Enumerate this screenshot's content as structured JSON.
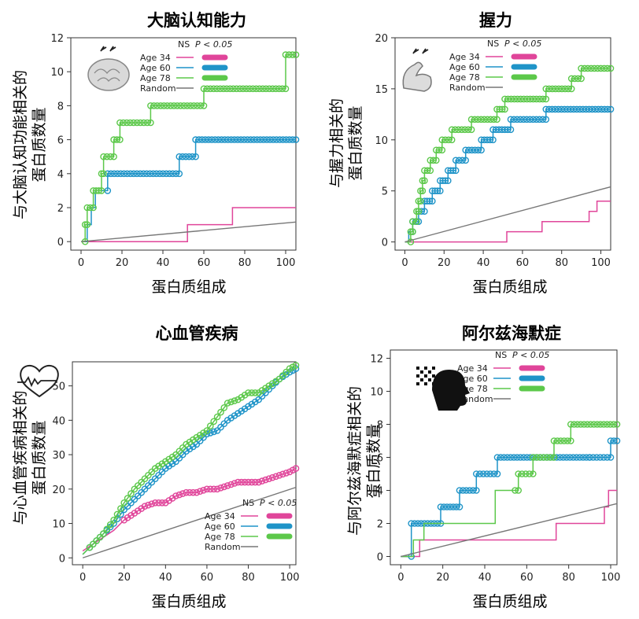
{
  "colors": {
    "age34": "#e0459a",
    "age60": "#1f94c8",
    "age78": "#5cc84a",
    "random": "#777777"
  },
  "chart_data": [
    {
      "type": "line",
      "title": "大脑认知能力",
      "xlabel": "蛋白质组成",
      "ylabel": [
        "与大脑认知功能相关的",
        "蛋白质数量"
      ],
      "xlim": [
        -5,
        105
      ],
      "ylim": [
        -0.5,
        12
      ],
      "xticks": [
        0,
        20,
        40,
        60,
        80,
        100
      ],
      "yticks": [
        0,
        2,
        4,
        6,
        8,
        10,
        12
      ],
      "legend": {
        "position": "top",
        "header_ns": "NS",
        "header_p": "P < 0.05",
        "icon": "brain-icon"
      },
      "series": [
        {
          "name": "Age 34",
          "color": "#e0459a",
          "steps": [
            [
              0,
              0
            ],
            [
              52,
              0
            ],
            [
              52,
              1
            ],
            [
              74,
              1
            ],
            [
              74,
              2
            ],
            [
              105,
              2
            ]
          ],
          "sig_from": 999
        },
        {
          "name": "Age 60",
          "color": "#1f94c8",
          "steps": [
            [
              0,
              0
            ],
            [
              3,
              0
            ],
            [
              3,
              1
            ],
            [
              5,
              1
            ],
            [
              5,
              2
            ],
            [
              7,
              2
            ],
            [
              7,
              3
            ],
            [
              13,
              3
            ],
            [
              13,
              4
            ],
            [
              48,
              4
            ],
            [
              48,
              5
            ],
            [
              56,
              5
            ],
            [
              56,
              6
            ],
            [
              105,
              6
            ]
          ],
          "sig_from": 12
        },
        {
          "name": "Age 78",
          "color": "#5cc84a",
          "steps": [
            [
              0,
              0
            ],
            [
              2,
              0
            ],
            [
              2,
              1
            ],
            [
              3,
              1
            ],
            [
              3,
              2
            ],
            [
              6,
              2
            ],
            [
              6,
              3
            ],
            [
              10,
              3
            ],
            [
              10,
              4
            ],
            [
              11,
              4
            ],
            [
              11,
              5
            ],
            [
              16,
              5
            ],
            [
              16,
              6
            ],
            [
              19,
              6
            ],
            [
              19,
              7
            ],
            [
              34,
              7
            ],
            [
              34,
              8
            ],
            [
              60,
              8
            ],
            [
              60,
              9
            ],
            [
              100,
              9
            ],
            [
              100,
              11
            ],
            [
              105,
              11
            ]
          ],
          "sig_from": 1
        },
        {
          "name": "Random",
          "color": "#777777",
          "line": [
            [
              0,
              0
            ],
            [
              105,
              1.15
            ]
          ]
        }
      ]
    },
    {
      "type": "line",
      "title": "握力",
      "xlabel": "蛋白质组成",
      "ylabel": [
        "与握力相关的",
        "蛋白质数量"
      ],
      "xlim": [
        -5,
        105
      ],
      "ylim": [
        -0.8,
        20
      ],
      "xticks": [
        0,
        20,
        40,
        60,
        80,
        100
      ],
      "yticks": [
        0,
        5,
        10,
        15,
        20
      ],
      "legend": {
        "position": "top",
        "header_ns": "NS",
        "header_p": "P < 0.05",
        "icon": "muscle-icon"
      },
      "series": [
        {
          "name": "Age 34",
          "color": "#e0459a",
          "steps": [
            [
              0,
              0
            ],
            [
              52,
              0
            ],
            [
              52,
              1
            ],
            [
              70,
              1
            ],
            [
              70,
              2
            ],
            [
              94,
              2
            ],
            [
              94,
              3
            ],
            [
              98,
              3
            ],
            [
              98,
              4
            ],
            [
              105,
              4
            ]
          ],
          "sig_from": 999
        },
        {
          "name": "Age 60",
          "color": "#1f94c8",
          "steps": [
            [
              0,
              0
            ],
            [
              2,
              0
            ],
            [
              2,
              1
            ],
            [
              4,
              1
            ],
            [
              4,
              2
            ],
            [
              7,
              2
            ],
            [
              7,
              3
            ],
            [
              10,
              3
            ],
            [
              10,
              4
            ],
            [
              14,
              4
            ],
            [
              14,
              5
            ],
            [
              18,
              5
            ],
            [
              18,
              6
            ],
            [
              22,
              6
            ],
            [
              22,
              7
            ],
            [
              26,
              7
            ],
            [
              26,
              8
            ],
            [
              31,
              8
            ],
            [
              31,
              9
            ],
            [
              39,
              9
            ],
            [
              39,
              10
            ],
            [
              45,
              10
            ],
            [
              45,
              11
            ],
            [
              54,
              11
            ],
            [
              54,
              12
            ],
            [
              72,
              12
            ],
            [
              72,
              13
            ],
            [
              105,
              13
            ]
          ],
          "sig_from": 4
        },
        {
          "name": "Age 78",
          "color": "#5cc84a",
          "steps": [
            [
              0,
              0
            ],
            [
              3,
              0
            ],
            [
              3,
              1
            ],
            [
              4,
              1
            ],
            [
              4,
              2
            ],
            [
              6,
              2
            ],
            [
              6,
              3
            ],
            [
              7,
              3
            ],
            [
              7,
              4
            ],
            [
              8,
              4
            ],
            [
              8,
              5
            ],
            [
              9,
              5
            ],
            [
              9,
              6
            ],
            [
              10,
              6
            ],
            [
              10,
              7
            ],
            [
              13,
              7
            ],
            [
              13,
              8
            ],
            [
              16,
              8
            ],
            [
              16,
              9
            ],
            [
              19,
              9
            ],
            [
              19,
              10
            ],
            [
              24,
              10
            ],
            [
              24,
              11
            ],
            [
              34,
              11
            ],
            [
              34,
              12
            ],
            [
              47,
              12
            ],
            [
              47,
              13
            ],
            [
              51,
              13
            ],
            [
              51,
              14
            ],
            [
              72,
              14
            ],
            [
              72,
              15
            ],
            [
              85,
              15
            ],
            [
              85,
              16
            ],
            [
              90,
              16
            ],
            [
              90,
              17
            ],
            [
              105,
              17
            ]
          ],
          "sig_from": 3
        },
        {
          "name": "Random",
          "color": "#777777",
          "line": [
            [
              0,
              0
            ],
            [
              105,
              5.4
            ]
          ]
        }
      ]
    },
    {
      "type": "line",
      "title": "心血管疾病",
      "xlabel": "蛋白质组成",
      "ylabel": [
        "与心血管疾病相关的",
        "蛋白质数量"
      ],
      "xlim": [
        -5,
        103
      ],
      "ylim": [
        -2,
        57
      ],
      "xticks": [
        0,
        20,
        40,
        60,
        80,
        100
      ],
      "yticks": [
        0,
        10,
        20,
        30,
        40,
        50
      ],
      "legend": {
        "position": "bottom-right",
        "header_ns": "NS",
        "header_p": "P < 0.05",
        "icon": "heart-icon"
      },
      "series": [
        {
          "name": "Age 34",
          "color": "#e0459a",
          "curve": [
            [
              0,
              2
            ],
            [
              5,
              4
            ],
            [
              10,
              6
            ],
            [
              15,
              8
            ],
            [
              20,
              11
            ],
            [
              25,
              13
            ],
            [
              30,
              15
            ],
            [
              35,
              16
            ],
            [
              40,
              16
            ],
            [
              45,
              18
            ],
            [
              50,
              19
            ],
            [
              55,
              19
            ],
            [
              60,
              20
            ],
            [
              65,
              20
            ],
            [
              70,
              21
            ],
            [
              75,
              22
            ],
            [
              80,
              22
            ],
            [
              85,
              22
            ],
            [
              90,
              23
            ],
            [
              95,
              24
            ],
            [
              100,
              25
            ],
            [
              103,
              26
            ]
          ],
          "sig_from": 20
        },
        {
          "name": "Age 60",
          "color": "#1f94c8",
          "curve": [
            [
              0,
              1
            ],
            [
              5,
              4
            ],
            [
              10,
              7
            ],
            [
              15,
              10
            ],
            [
              20,
              14
            ],
            [
              25,
              17
            ],
            [
              30,
              20
            ],
            [
              35,
              23
            ],
            [
              40,
              26
            ],
            [
              45,
              28
            ],
            [
              50,
              31
            ],
            [
              55,
              33
            ],
            [
              60,
              36
            ],
            [
              65,
              37
            ],
            [
              70,
              40
            ],
            [
              75,
              42
            ],
            [
              80,
              44
            ],
            [
              85,
              46
            ],
            [
              90,
              49
            ],
            [
              95,
              52
            ],
            [
              100,
              54
            ],
            [
              103,
              55
            ]
          ],
          "sig_from": 3
        },
        {
          "name": "Age 78",
          "color": "#5cc84a",
          "curve": [
            [
              0,
              1
            ],
            [
              5,
              4
            ],
            [
              10,
              7
            ],
            [
              15,
              11
            ],
            [
              20,
              16
            ],
            [
              25,
              20
            ],
            [
              30,
              23
            ],
            [
              35,
              26
            ],
            [
              40,
              28
            ],
            [
              45,
              30
            ],
            [
              50,
              33
            ],
            [
              55,
              35
            ],
            [
              60,
              37
            ],
            [
              65,
              41
            ],
            [
              70,
              45
            ],
            [
              75,
              46
            ],
            [
              80,
              48
            ],
            [
              85,
              48
            ],
            [
              90,
              50
            ],
            [
              95,
              52
            ],
            [
              100,
              55
            ],
            [
              103,
              56
            ]
          ],
          "sig_from": 3
        },
        {
          "name": "Random",
          "color": "#777777",
          "line": [
            [
              0,
              0
            ],
            [
              103,
              20.5
            ]
          ]
        }
      ]
    },
    {
      "type": "line",
      "title": "阿尔兹海默症",
      "xlabel": "蛋白质组成",
      "ylabel": [
        "与阿尔兹海默症相关的",
        "蛋白质数量"
      ],
      "xlim": [
        -5,
        103
      ],
      "ylim": [
        -0.5,
        12.5
      ],
      "xticks": [
        0,
        20,
        40,
        60,
        80,
        100
      ],
      "yticks": [
        0,
        2,
        4,
        6,
        8,
        10,
        12
      ],
      "legend": {
        "position": "top",
        "header_ns": "NS",
        "header_p": "P < 0.05",
        "icon": "head-pixel-icon"
      },
      "series": [
        {
          "name": "Age 34",
          "color": "#e0459a",
          "steps": [
            [
              0,
              0
            ],
            [
              9,
              0
            ],
            [
              9,
              1
            ],
            [
              74,
              1
            ],
            [
              74,
              2
            ],
            [
              97,
              2
            ],
            [
              97,
              3
            ],
            [
              99,
              3
            ],
            [
              99,
              4
            ],
            [
              103,
              4
            ]
          ],
          "sig_from": 999
        },
        {
          "name": "Age 60",
          "color": "#1f94c8",
          "steps": [
            [
              0,
              0
            ],
            [
              5,
              0
            ],
            [
              5,
              2
            ],
            [
              19,
              2
            ],
            [
              19,
              3
            ],
            [
              28,
              3
            ],
            [
              28,
              4
            ],
            [
              36,
              4
            ],
            [
              36,
              5
            ],
            [
              46,
              5
            ],
            [
              46,
              6
            ],
            [
              90,
              6
            ],
            [
              90,
              6
            ],
            [
              100,
              6
            ],
            [
              100,
              7
            ],
            [
              103,
              7
            ]
          ],
          "sig_from": 5
        },
        {
          "name": "Age 78",
          "color": "#5cc84a",
          "steps": [
            [
              0,
              0
            ],
            [
              6,
              0
            ],
            [
              6,
              1
            ],
            [
              11,
              1
            ],
            [
              11,
              2
            ],
            [
              45,
              2
            ],
            [
              45,
              4
            ],
            [
              56,
              4
            ],
            [
              56,
              5
            ],
            [
              63,
              5
            ],
            [
              63,
              6
            ],
            [
              73,
              6
            ],
            [
              73,
              7
            ],
            [
              81,
              7
            ],
            [
              81,
              8
            ],
            [
              103,
              8
            ]
          ],
          "sig_from": 54
        },
        {
          "name": "Random",
          "color": "#777777",
          "line": [
            [
              0,
              0
            ],
            [
              103,
              3.2
            ]
          ]
        }
      ]
    }
  ]
}
